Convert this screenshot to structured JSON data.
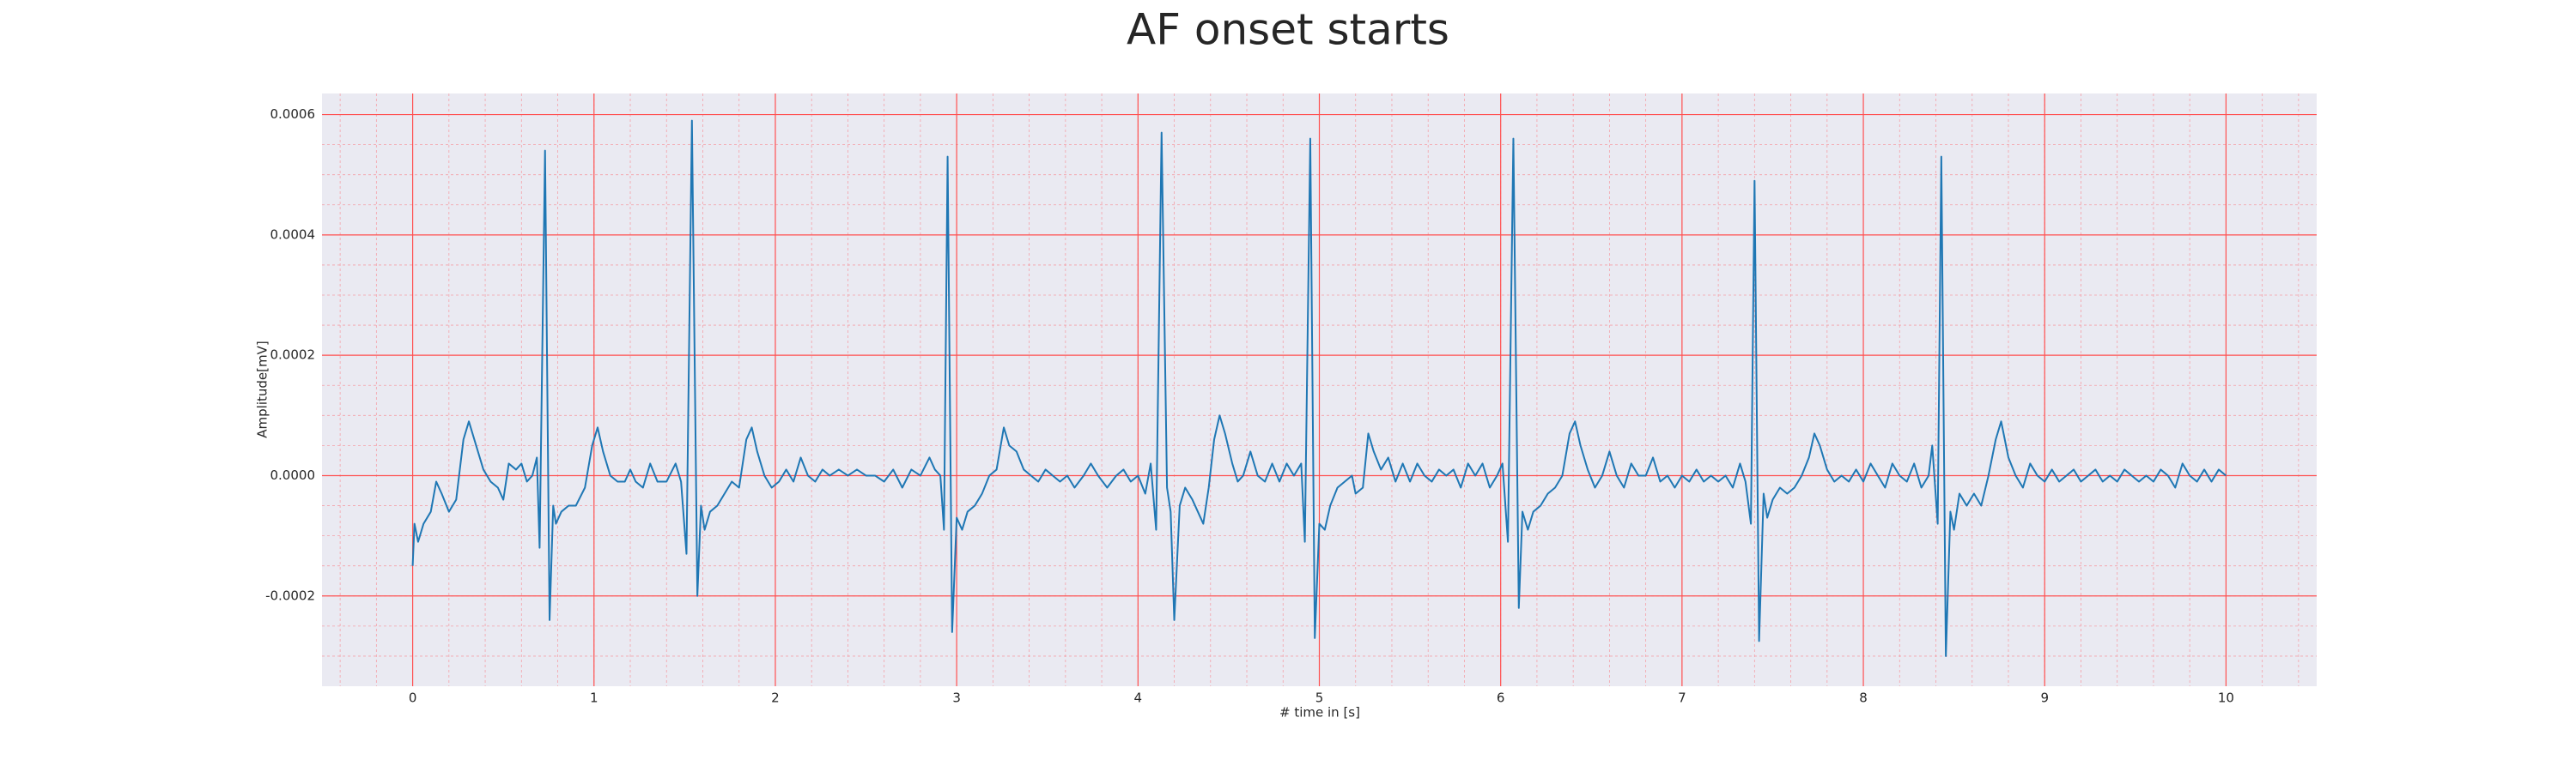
{
  "chart_data": {
    "type": "line",
    "title": "AF onset starts",
    "xlabel": "# time in [s]",
    "ylabel": "Amplitude[mV]",
    "color": "#1f77b4",
    "grid": true,
    "minor_grid": true,
    "xlim": [
      -0.5,
      10.5
    ],
    "ylim": [
      -0.00035,
      0.000635
    ],
    "xticks": [
      0,
      1,
      2,
      3,
      4,
      5,
      6,
      7,
      8,
      9,
      10
    ],
    "yticks": [
      -0.0002,
      {
        "value": 0,
        "label": "0.0000"
      },
      0.0002,
      0.0004,
      0.0006
    ],
    "x": [
      0,
      0.01,
      0.03,
      0.06,
      0.1,
      0.13,
      0.16,
      0.2,
      0.24,
      0.28,
      0.31,
      0.35,
      0.39,
      0.43,
      0.47,
      0.5,
      0.53,
      0.57,
      0.6,
      0.63,
      0.66,
      0.685,
      0.7,
      0.73,
      0.755,
      0.775,
      0.79,
      0.82,
      0.86,
      0.9,
      0.95,
      0.99,
      1.02,
      1.05,
      1.09,
      1.13,
      1.17,
      1.2,
      1.23,
      1.27,
      1.31,
      1.35,
      1.4,
      1.45,
      1.48,
      1.51,
      1.54,
      1.57,
      1.59,
      1.61,
      1.64,
      1.68,
      1.72,
      1.76,
      1.8,
      1.84,
      1.87,
      1.9,
      1.94,
      1.98,
      2.02,
      2.06,
      2.1,
      2.14,
      2.18,
      2.22,
      2.26,
      2.3,
      2.35,
      2.4,
      2.45,
      2.5,
      2.55,
      2.6,
      2.65,
      2.7,
      2.75,
      2.8,
      2.85,
      2.88,
      2.91,
      2.93,
      2.95,
      2.975,
      3.0,
      3.03,
      3.06,
      3.1,
      3.14,
      3.18,
      3.22,
      3.26,
      3.29,
      3.33,
      3.37,
      3.41,
      3.45,
      3.49,
      3.53,
      3.57,
      3.61,
      3.65,
      3.7,
      3.74,
      3.78,
      3.83,
      3.88,
      3.92,
      3.96,
      4.0,
      4.04,
      4.07,
      4.1,
      4.13,
      4.16,
      4.18,
      4.2,
      4.23,
      4.26,
      4.3,
      4.33,
      4.36,
      4.39,
      4.42,
      4.45,
      4.48,
      4.52,
      4.55,
      4.58,
      4.62,
      4.66,
      4.7,
      4.74,
      4.78,
      4.82,
      4.86,
      4.9,
      4.92,
      4.95,
      4.975,
      5.0,
      5.03,
      5.06,
      5.1,
      5.14,
      5.18,
      5.2,
      5.24,
      5.27,
      5.3,
      5.34,
      5.38,
      5.42,
      5.46,
      5.5,
      5.54,
      5.58,
      5.62,
      5.66,
      5.7,
      5.74,
      5.78,
      5.82,
      5.86,
      5.9,
      5.94,
      5.98,
      6.01,
      6.04,
      6.07,
      6.1,
      6.12,
      6.15,
      6.18,
      6.22,
      6.26,
      6.3,
      6.34,
      6.38,
      6.41,
      6.44,
      6.48,
      6.52,
      6.56,
      6.6,
      6.64,
      6.68,
      6.72,
      6.76,
      6.8,
      6.84,
      6.88,
      6.92,
      6.96,
      7.0,
      7.04,
      7.08,
      7.12,
      7.16,
      7.2,
      7.24,
      7.28,
      7.32,
      7.35,
      7.38,
      7.4,
      7.425,
      7.45,
      7.47,
      7.5,
      7.54,
      7.58,
      7.62,
      7.66,
      7.7,
      7.73,
      7.76,
      7.8,
      7.84,
      7.88,
      7.92,
      7.96,
      8.0,
      8.04,
      8.08,
      8.12,
      8.16,
      8.2,
      8.24,
      8.28,
      8.32,
      8.36,
      8.38,
      8.41,
      8.43,
      8.455,
      8.48,
      8.5,
      8.53,
      8.57,
      8.61,
      8.65,
      8.69,
      8.73,
      8.76,
      8.8,
      8.84,
      8.88,
      8.92,
      8.96,
      9.0,
      9.04,
      9.08,
      9.12,
      9.16,
      9.2,
      9.24,
      9.28,
      9.32,
      9.36,
      9.4,
      9.44,
      9.48,
      9.52,
      9.56,
      9.6,
      9.64,
      9.68,
      9.72,
      9.76,
      9.8,
      9.84,
      9.88,
      9.92,
      9.96,
      10.0
    ],
    "values": [
      -0.00015,
      -8e-05,
      -0.00011,
      -8e-05,
      -6e-05,
      -1e-05,
      -3e-05,
      -6e-05,
      -4e-05,
      6e-05,
      9e-05,
      5e-05,
      1e-05,
      -1e-05,
      -2e-05,
      -4e-05,
      2e-05,
      1e-05,
      2e-05,
      -1e-05,
      0.0,
      3e-05,
      -0.00012,
      0.00054,
      -0.00024,
      -5e-05,
      -8e-05,
      -6e-05,
      -5e-05,
      -5e-05,
      -2e-05,
      5e-05,
      8e-05,
      4e-05,
      0.0,
      -1e-05,
      -1e-05,
      1e-05,
      -1e-05,
      -2e-05,
      2e-05,
      -1e-05,
      -1e-05,
      2e-05,
      -1e-05,
      -0.00013,
      0.00059,
      -0.0002,
      -5e-05,
      -9e-05,
      -6e-05,
      -5e-05,
      -3e-05,
      -1e-05,
      -2e-05,
      6e-05,
      8e-05,
      4e-05,
      0.0,
      -2e-05,
      -1e-05,
      1e-05,
      -1e-05,
      3e-05,
      0.0,
      -1e-05,
      1e-05,
      0.0,
      1e-05,
      0.0,
      1e-05,
      0.0,
      0.0,
      -1e-05,
      1e-05,
      -2e-05,
      1e-05,
      0.0,
      3e-05,
      1e-05,
      0.0,
      -9e-05,
      0.00053,
      -0.00026,
      -7e-05,
      -9e-05,
      -6e-05,
      -5e-05,
      -3e-05,
      0.0,
      1e-05,
      8e-05,
      5e-05,
      4e-05,
      1e-05,
      0.0,
      -1e-05,
      1e-05,
      0.0,
      -1e-05,
      0.0,
      -2e-05,
      0.0,
      2e-05,
      0.0,
      -2e-05,
      0.0,
      1e-05,
      -1e-05,
      0.0,
      -3e-05,
      2e-05,
      -9e-05,
      0.00057,
      -2e-05,
      -6e-05,
      -0.00024,
      -5e-05,
      -2e-05,
      -4e-05,
      -6e-05,
      -8e-05,
      -2e-05,
      6e-05,
      0.0001,
      7e-05,
      2e-05,
      -1e-05,
      0.0,
      4e-05,
      0.0,
      -1e-05,
      2e-05,
      -1e-05,
      2e-05,
      0.0,
      2e-05,
      -0.00011,
      0.00056,
      -0.00027,
      -8e-05,
      -9e-05,
      -5e-05,
      -2e-05,
      -1e-05,
      0.0,
      -3e-05,
      -2e-05,
      7e-05,
      4e-05,
      1e-05,
      3e-05,
      -1e-05,
      2e-05,
      -1e-05,
      2e-05,
      0.0,
      -1e-05,
      1e-05,
      0.0,
      1e-05,
      -2e-05,
      2e-05,
      0.0,
      2e-05,
      -2e-05,
      0.0,
      2e-05,
      -0.00011,
      0.00056,
      -0.00022,
      -6e-05,
      -9e-05,
      -6e-05,
      -5e-05,
      -3e-05,
      -2e-05,
      0.0,
      7e-05,
      9e-05,
      5e-05,
      1e-05,
      -2e-05,
      0.0,
      4e-05,
      0.0,
      -2e-05,
      2e-05,
      0.0,
      0.0,
      3e-05,
      -1e-05,
      0.0,
      -2e-05,
      0.0,
      -1e-05,
      1e-05,
      -1e-05,
      0.0,
      -1e-05,
      0.0,
      -2e-05,
      2e-05,
      -1e-05,
      -8e-05,
      0.00049,
      -0.000275,
      -3e-05,
      -7e-05,
      -4e-05,
      -2e-05,
      -3e-05,
      -2e-05,
      0.0,
      3e-05,
      7e-05,
      5e-05,
      1e-05,
      -1e-05,
      0.0,
      -1e-05,
      1e-05,
      -1e-05,
      2e-05,
      0.0,
      -2e-05,
      2e-05,
      0.0,
      -1e-05,
      2e-05,
      -2e-05,
      0.0,
      5e-05,
      -8e-05,
      0.00053,
      -0.0003,
      -6e-05,
      -9e-05,
      -3e-05,
      -5e-05,
      -3e-05,
      -5e-05,
      0.0,
      6e-05,
      9e-05,
      3e-05,
      0.0,
      -2e-05,
      2e-05,
      0.0,
      -1e-05,
      1e-05,
      -1e-05,
      0.0,
      1e-05,
      -1e-05,
      0.0,
      1e-05,
      -1e-05,
      0.0,
      -1e-05,
      1e-05,
      0.0,
      -1e-05,
      0.0,
      -1e-05,
      1e-05,
      0.0,
      -2e-05,
      2e-05,
      0.0,
      -1e-05,
      1e-05,
      -1e-05,
      1e-05,
      0.0
    ]
  }
}
